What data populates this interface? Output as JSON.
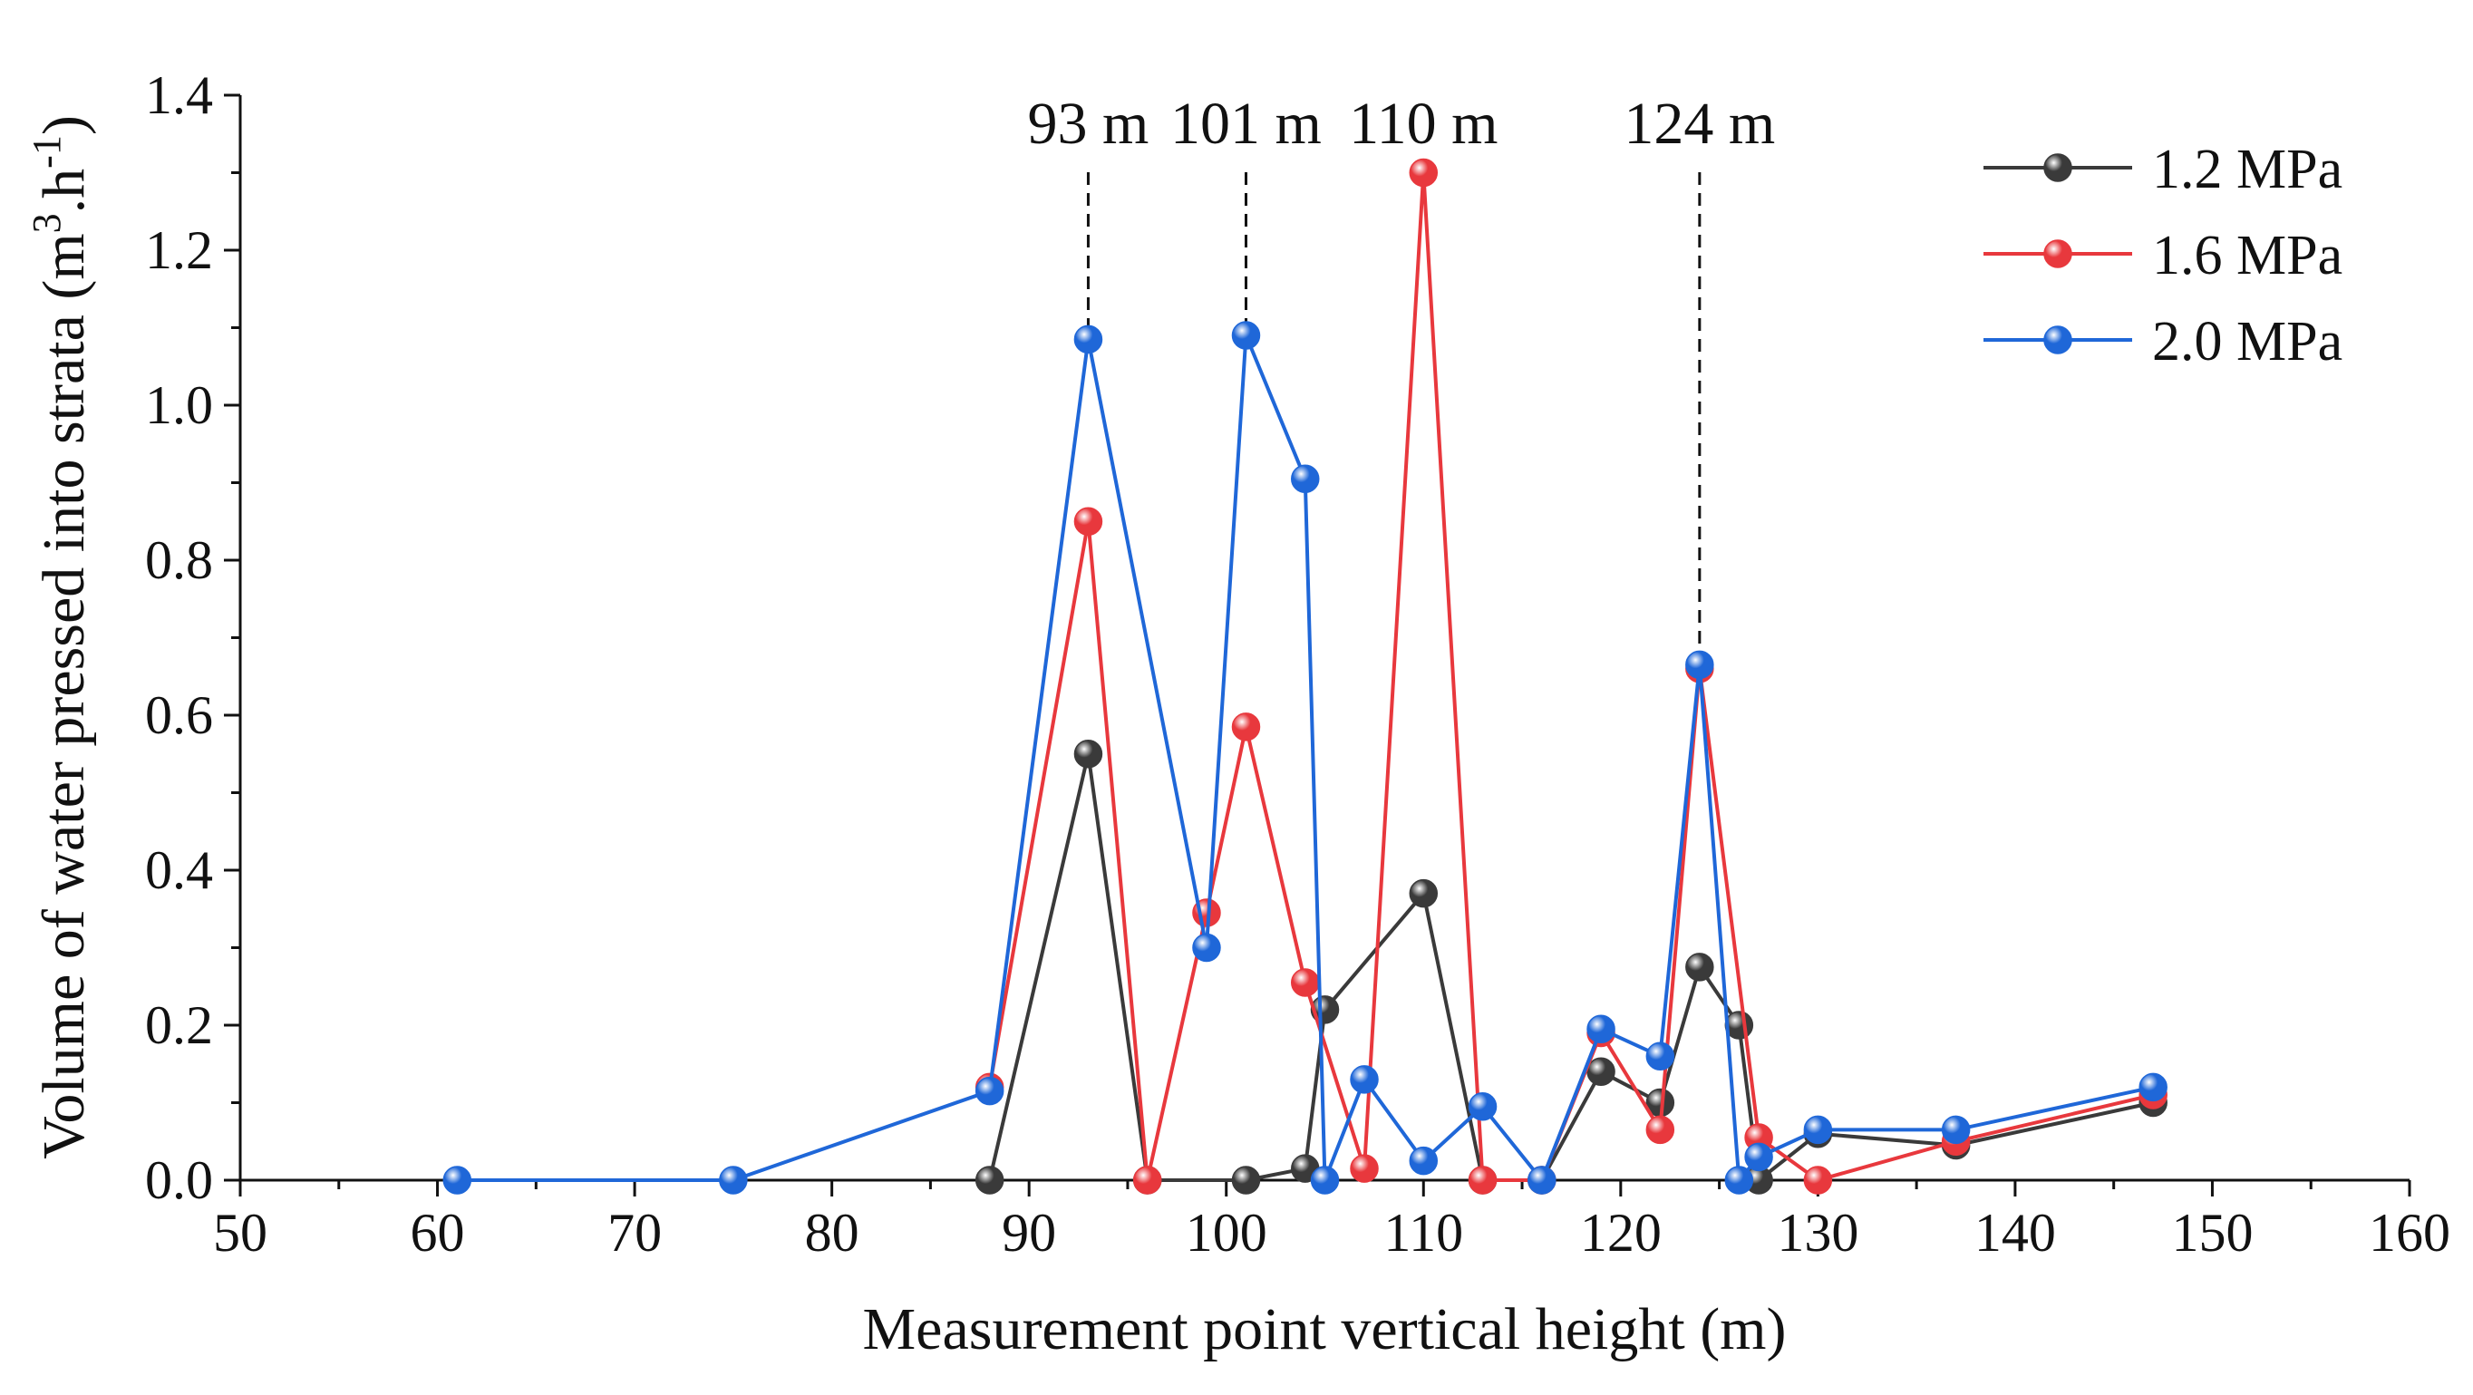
{
  "chart_data": {
    "type": "line",
    "title": "",
    "xlabel": "Measurement point vertical height (m)",
    "ylabel": "Volume of water pressed into strata",
    "ylabel_unit": {
      "open": "(m",
      "sup1": "3",
      "mid": ".h",
      "sup2": "-1",
      "close": ")"
    },
    "xlim": [
      50,
      160
    ],
    "ylim": [
      0.0,
      1.4
    ],
    "xticks": [
      50,
      60,
      70,
      80,
      90,
      100,
      110,
      120,
      130,
      140,
      150,
      160
    ],
    "xtick_labels": [
      "50",
      "60",
      "70",
      "80",
      "90",
      "100",
      "110",
      "120",
      "130",
      "140",
      "150",
      "160"
    ],
    "yticks": [
      0.0,
      0.2,
      0.4,
      0.6,
      0.8,
      1.0,
      1.2,
      1.4
    ],
    "ytick_labels": [
      "0.0",
      "0.2",
      "0.4",
      "0.6",
      "0.8",
      "1.0",
      "1.2",
      "1.4"
    ],
    "grid": false,
    "legend_position": "top-right",
    "series": [
      {
        "name": "1.2 MPa",
        "color": "#3a3a3a",
        "x": [
          88,
          93,
          96,
          101,
          104,
          105,
          110,
          113,
          116,
          119,
          122,
          124,
          126,
          127,
          130,
          137,
          147
        ],
        "y": [
          0.0,
          0.55,
          0.0,
          0.0,
          0.015,
          0.22,
          0.37,
          0.0,
          0.0,
          0.14,
          0.1,
          0.275,
          0.2,
          0.0,
          0.06,
          0.045,
          0.1
        ]
      },
      {
        "name": "1.6 MPa",
        "color": "#e8383d",
        "x": [
          88,
          93,
          96,
          99,
          101,
          104,
          107,
          110,
          113,
          116,
          119,
          122,
          124,
          127,
          130,
          137,
          147
        ],
        "y": [
          0.12,
          0.85,
          0.0,
          0.345,
          0.585,
          0.255,
          0.015,
          1.3,
          0.0,
          0.0,
          0.19,
          0.065,
          0.66,
          0.055,
          0.0,
          0.05,
          0.11
        ]
      },
      {
        "name": "2.0 MPa",
        "color": "#1f67d8",
        "x": [
          61,
          75,
          88,
          93,
          99,
          101,
          104,
          105,
          107,
          110,
          113,
          116,
          119,
          122,
          124,
          126,
          127,
          130,
          137,
          147
        ],
        "y": [
          0.0,
          0.0,
          0.115,
          1.085,
          0.3,
          1.09,
          0.905,
          0.0,
          0.13,
          0.025,
          0.095,
          0.0,
          0.195,
          0.16,
          0.665,
          0.0,
          0.03,
          0.065,
          0.065,
          0.12
        ]
      }
    ],
    "annotations": [
      {
        "label": "93 m",
        "x": 93,
        "y_top": 1.3,
        "y_bottom": 1.08
      },
      {
        "label": "101 m",
        "x": 101,
        "y_top": 1.3,
        "y_bottom": 1.09
      },
      {
        "label": "110 m",
        "x": 110,
        "y_top": null,
        "y_bottom": null
      },
      {
        "label": "124 m",
        "x": 124,
        "y_top": 1.28,
        "y_bottom": 0.665
      }
    ]
  }
}
